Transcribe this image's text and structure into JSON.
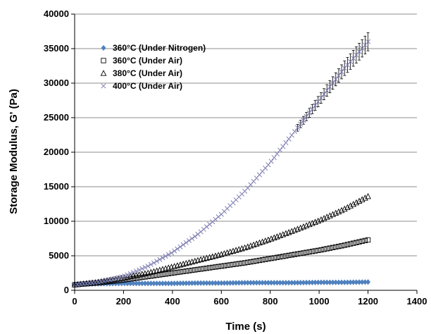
{
  "chart_data": {
    "type": "scatter",
    "xlabel": "Time (s)",
    "ylabel": "Storage Modulus, G' (Pa)",
    "xlim": [
      0,
      1400
    ],
    "ylim": [
      0,
      40000
    ],
    "xticks": [
      0,
      200,
      400,
      600,
      800,
      1000,
      1200,
      1400
    ],
    "yticks": [
      0,
      5000,
      10000,
      15000,
      20000,
      25000,
      30000,
      35000,
      40000
    ],
    "grid": "horizontal",
    "legend_position": "top-left",
    "series": [
      {
        "name": "360°C (Under Nitrogen)",
        "marker": "diamond",
        "color": "#4f81bd",
        "x": [
          0,
          100,
          200,
          300,
          400,
          500,
          600,
          700,
          800,
          900,
          1000,
          1100,
          1200
        ],
        "y": [
          900,
          950,
          1000,
          1000,
          1000,
          1050,
          1050,
          1100,
          1100,
          1100,
          1150,
          1150,
          1200
        ]
      },
      {
        "name": "360°C (Under Air)",
        "marker": "square",
        "color": "#000000",
        "x": [
          0,
          100,
          200,
          300,
          400,
          500,
          600,
          700,
          800,
          900,
          1000,
          1100,
          1200
        ],
        "y": [
          800,
          1100,
          1500,
          2000,
          2500,
          3000,
          3500,
          4000,
          4600,
          5200,
          5800,
          6500,
          7300
        ]
      },
      {
        "name": "380°C (Under Air)",
        "marker": "triangle",
        "color": "#000000",
        "x": [
          0,
          100,
          200,
          300,
          400,
          500,
          600,
          700,
          800,
          900,
          1000,
          1100,
          1200
        ],
        "y": [
          800,
          1200,
          1800,
          2500,
          3400,
          4300,
          5200,
          6200,
          7400,
          8700,
          10100,
          11700,
          13600
        ]
      },
      {
        "name": "400°C (Under Air)",
        "marker": "x",
        "color": "#7f7fb2",
        "error_bars": true,
        "x": [
          0,
          100,
          200,
          300,
          400,
          500,
          600,
          700,
          800,
          900,
          1000,
          1100,
          1200
        ],
        "y": [
          800,
          1200,
          2000,
          3500,
          5500,
          8000,
          11000,
          14500,
          18500,
          23000,
          27500,
          32000,
          36000
        ]
      }
    ]
  }
}
